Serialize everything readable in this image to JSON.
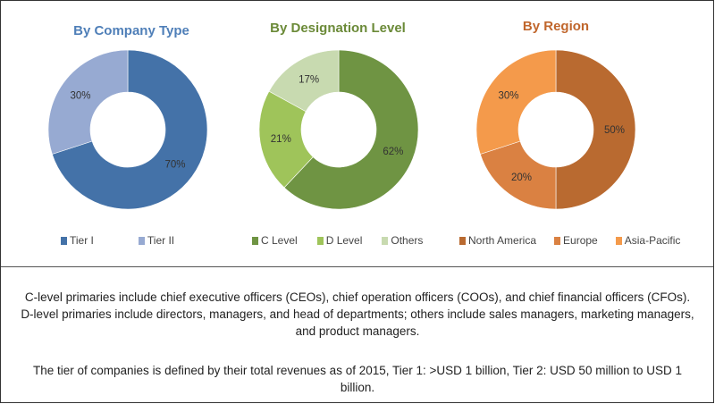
{
  "chart_data": [
    {
      "type": "pie",
      "title": "By Company Type",
      "title_color": "#4f7fb8",
      "categories": [
        "Tier I",
        "Tier II"
      ],
      "values": [
        70,
        30
      ],
      "labels": [
        "70%",
        "30%"
      ],
      "colors": [
        "#4472a8",
        "#97aad2"
      ]
    },
    {
      "type": "pie",
      "title": "By Designation Level",
      "title_color": "#6b8a38",
      "categories": [
        "C Level",
        "D Level",
        "Others"
      ],
      "values": [
        62,
        21,
        17
      ],
      "labels": [
        "62%",
        "21%",
        "17%"
      ],
      "colors": [
        "#6f9443",
        "#9fc45a",
        "#c8dab0"
      ]
    },
    {
      "type": "pie",
      "title": "By Region",
      "title_color": "#c0662c",
      "categories": [
        "North America",
        "Europe",
        "Asia-Pacific"
      ],
      "values": [
        50,
        20,
        30
      ],
      "labels": [
        "50%",
        "20%",
        "30%"
      ],
      "colors": [
        "#b96a30",
        "#da8142",
        "#f49a4b"
      ]
    }
  ],
  "notes": {
    "designation": "C-level primaries include chief executive officers (CEOs), chief operation officers (COOs), and chief financial officers (CFOs). D-level primaries include directors, managers, and head of departments; others include sales managers, marketing managers, and product managers.",
    "tier": "The tier of companies is defined by their total revenues as of 2015, Tier 1: >USD 1 billion, Tier 2: USD 50 million to USD 1 billion."
  }
}
